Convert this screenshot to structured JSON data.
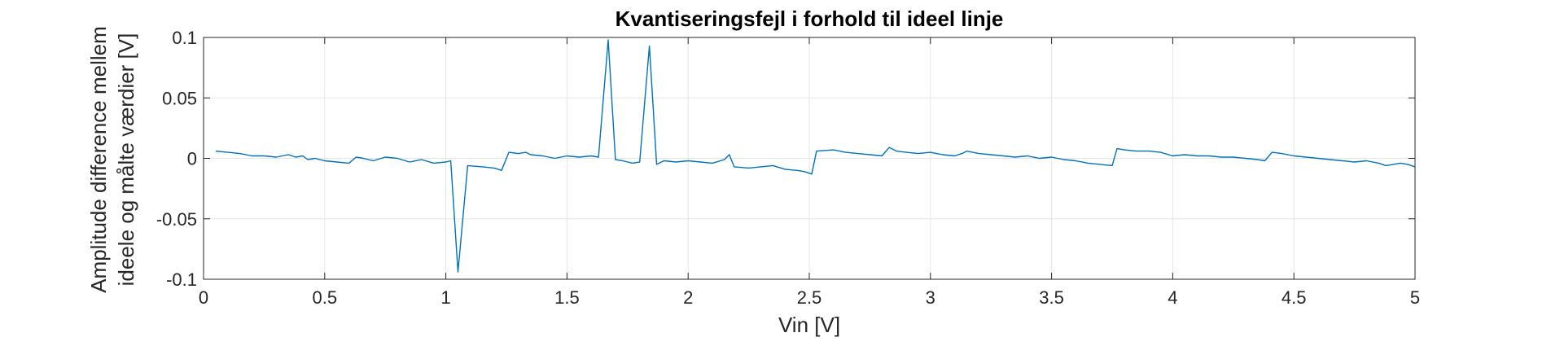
{
  "chart_data": {
    "type": "line",
    "title": "Kvantiseringsfejl i forhold til ideel linje",
    "xlabel": "Vin [V]",
    "ylabel": [
      "Amplitude difference mellem",
      "ideele og målte værdier [V]"
    ],
    "xlim": [
      0,
      5
    ],
    "ylim": [
      -0.1,
      0.1
    ],
    "xticks": [
      0,
      0.5,
      1,
      1.5,
      2,
      2.5,
      3,
      3.5,
      4,
      4.5,
      5
    ],
    "xtick_labels": [
      "0",
      "0.5",
      "1",
      "1.5",
      "2",
      "2.5",
      "3",
      "3.5",
      "4",
      "4.5",
      "5"
    ],
    "yticks": [
      0.1,
      0.05,
      0,
      -0.05,
      -0.1
    ],
    "ytick_labels": [
      "0.1",
      "0.05",
      "0",
      "-0.05",
      "-0.1"
    ],
    "grid": true,
    "box": true,
    "line_color": "#0072BD",
    "x": [
      0.05,
      0.1,
      0.15,
      0.2,
      0.25,
      0.3,
      0.35,
      0.38,
      0.41,
      0.43,
      0.46,
      0.5,
      0.55,
      0.6,
      0.63,
      0.66,
      0.7,
      0.75,
      0.8,
      0.85,
      0.9,
      0.95,
      1.0,
      1.02,
      1.05,
      1.09,
      1.15,
      1.2,
      1.23,
      1.26,
      1.3,
      1.33,
      1.35,
      1.4,
      1.45,
      1.5,
      1.55,
      1.6,
      1.63,
      1.67,
      1.7,
      1.73,
      1.77,
      1.8,
      1.84,
      1.87,
      1.9,
      1.95,
      2.0,
      2.05,
      2.1,
      2.15,
      2.17,
      2.19,
      2.25,
      2.3,
      2.35,
      2.4,
      2.45,
      2.48,
      2.51,
      2.53,
      2.6,
      2.65,
      2.7,
      2.75,
      2.8,
      2.83,
      2.86,
      2.9,
      2.95,
      3.0,
      3.05,
      3.1,
      3.13,
      3.15,
      3.2,
      3.25,
      3.3,
      3.35,
      3.4,
      3.45,
      3.5,
      3.55,
      3.6,
      3.65,
      3.7,
      3.75,
      3.77,
      3.8,
      3.85,
      3.9,
      3.95,
      4.0,
      4.05,
      4.1,
      4.15,
      4.2,
      4.25,
      4.3,
      4.35,
      4.38,
      4.41,
      4.45,
      4.5,
      4.55,
      4.6,
      4.65,
      4.7,
      4.75,
      4.8,
      4.85,
      4.88,
      4.91,
      4.94,
      4.97,
      5.0
    ],
    "y": [
      0.006,
      0.005,
      0.004,
      0.002,
      0.002,
      0.001,
      0.003,
      0.001,
      0.002,
      -0.001,
      0.0,
      -0.002,
      -0.003,
      -0.004,
      0.001,
      0.0,
      -0.002,
      0.001,
      0.0,
      -0.003,
      -0.001,
      -0.004,
      -0.003,
      -0.002,
      -0.094,
      -0.006,
      -0.007,
      -0.008,
      -0.01,
      0.005,
      0.004,
      0.005,
      0.003,
      0.002,
      0.0,
      0.002,
      0.001,
      0.002,
      0.001,
      0.098,
      -0.001,
      -0.002,
      -0.004,
      -0.003,
      0.093,
      -0.005,
      -0.002,
      -0.003,
      -0.002,
      -0.003,
      -0.004,
      -0.001,
      0.003,
      -0.007,
      -0.008,
      -0.007,
      -0.006,
      -0.009,
      -0.01,
      -0.011,
      -0.013,
      0.006,
      0.007,
      0.005,
      0.004,
      0.003,
      0.002,
      0.009,
      0.006,
      0.005,
      0.004,
      0.005,
      0.003,
      0.002,
      0.004,
      0.006,
      0.004,
      0.003,
      0.002,
      0.001,
      0.002,
      0.0,
      0.001,
      -0.001,
      -0.002,
      -0.004,
      -0.005,
      -0.006,
      0.008,
      0.007,
      0.006,
      0.006,
      0.005,
      0.002,
      0.003,
      0.002,
      0.002,
      0.001,
      0.001,
      0.0,
      -0.001,
      -0.002,
      0.005,
      0.004,
      0.002,
      0.001,
      0.0,
      -0.001,
      -0.002,
      -0.003,
      -0.002,
      -0.004,
      -0.006,
      -0.005,
      -0.004,
      -0.005,
      -0.007
    ]
  }
}
